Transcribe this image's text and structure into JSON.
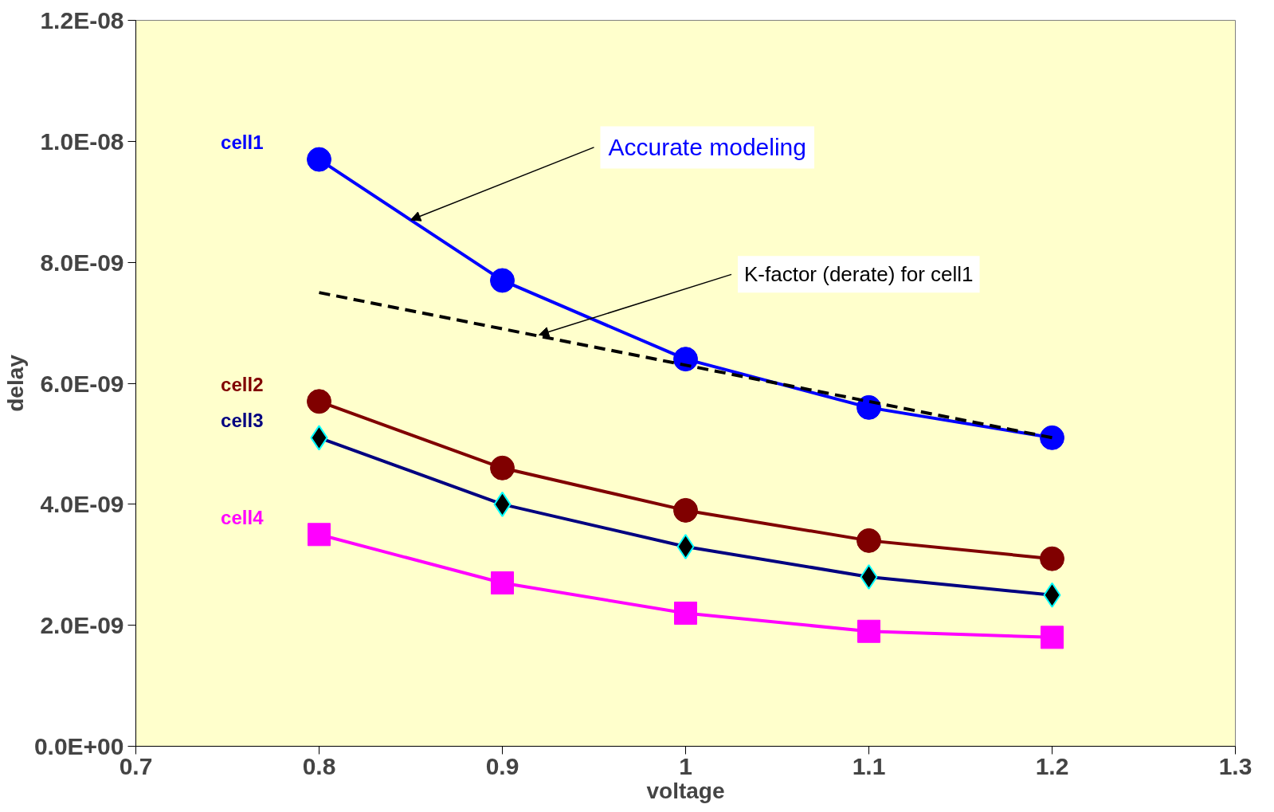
{
  "chart_data": {
    "type": "line",
    "xlabel": "voltage",
    "ylabel": "delay",
    "x": [
      0.8,
      0.9,
      1.0,
      1.1,
      1.2
    ],
    "series": [
      {
        "name": "cell1",
        "color": "#0000ff",
        "marker": "circle",
        "values": [
          9.7e-09,
          7.7e-09,
          6.4e-09,
          5.6e-09,
          5.1e-09
        ]
      },
      {
        "name": "cell2",
        "color": "#800000",
        "marker": "circle",
        "values": [
          5.7e-09,
          4.6e-09,
          3.9e-09,
          3.4e-09,
          3.1e-09
        ]
      },
      {
        "name": "cell3",
        "color": "#000080",
        "marker": "diamond",
        "values": [
          5.1e-09,
          4e-09,
          3.3e-09,
          2.8e-09,
          2.5e-09
        ]
      },
      {
        "name": "cell4",
        "color": "#ff00ff",
        "marker": "square",
        "values": [
          3.5e-09,
          2.7e-09,
          2.2e-09,
          1.9e-09,
          1.8e-09
        ]
      },
      {
        "color": "#000000",
        "marker": "none",
        "line_style": "dashed",
        "x": [
          0.8,
          1.2
        ],
        "values": [
          7.5e-09,
          5.1e-09
        ]
      }
    ],
    "annotations": [
      {
        "text": "Accurate modeling",
        "x": 0.85,
        "y": 8.7e-09
      },
      {
        "text": "K-factor (derate) for cell1",
        "x": 0.92,
        "y": 6.8e-09
      }
    ],
    "xlim": [
      0.7,
      1.3
    ],
    "xticks": [
      0.7,
      0.8,
      0.9,
      1,
      1.1,
      1.2,
      1.3
    ],
    "ylim": [
      0,
      1.2e-08
    ],
    "yticks": [
      {
        "value": 0,
        "label": "0.0E+00"
      },
      {
        "value": 2e-09,
        "label": "2.0E-09"
      },
      {
        "value": 4e-09,
        "label": "4.0E-09"
      },
      {
        "value": 6e-09,
        "label": "6.0E-09"
      },
      {
        "value": 8e-09,
        "label": "8.0E-09"
      },
      {
        "value": 1e-08,
        "label": "1.0E-08"
      },
      {
        "value": 1.2e-08,
        "label": "1.2E-08"
      }
    ],
    "grid": false
  }
}
